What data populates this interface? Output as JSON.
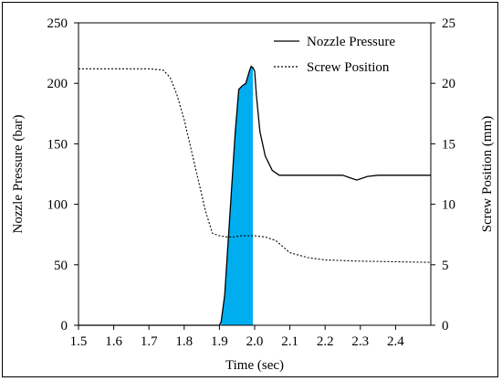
{
  "chart_data": {
    "type": "line",
    "x_axis": {
      "label": "Time (sec)",
      "range": [
        1.5,
        2.5
      ],
      "ticks": [
        "1.5",
        "1.6",
        "1.7",
        "1.8",
        "1.9",
        "2.0",
        "2.1",
        "2.2",
        "2.3",
        "2.4"
      ],
      "tick_values": [
        1.5,
        1.6,
        1.7,
        1.8,
        1.9,
        2.0,
        2.1,
        2.2,
        2.3,
        2.4
      ]
    },
    "y_left": {
      "label": "Nozzle Pressure (bar)",
      "range": [
        0,
        250
      ],
      "ticks": [
        "0",
        "50",
        "100",
        "150",
        "200",
        "250"
      ],
      "tick_values": [
        0,
        50,
        100,
        150,
        200,
        250
      ]
    },
    "y_right": {
      "label": "Screw Position (mm)",
      "range": [
        0,
        25
      ],
      "ticks": [
        "0",
        "5",
        "10",
        "15",
        "20",
        "25"
      ],
      "tick_values": [
        0,
        5,
        10,
        15,
        20,
        25
      ]
    },
    "legend": {
      "placement": "top-right",
      "entries": [
        "Nozzle Pressure",
        "Screw Position"
      ]
    },
    "grid": false,
    "shaded_region": {
      "x_start": 1.905,
      "x_end": 1.995,
      "color": "#00aeef",
      "series": "Nozzle Pressure"
    },
    "series": [
      {
        "name": "Nozzle Pressure",
        "axis": "left",
        "style": "solid",
        "x": [
          1.5,
          1.9,
          1.905,
          1.915,
          1.925,
          1.935,
          1.945,
          1.955,
          1.965,
          1.975,
          1.985,
          1.99,
          1.995,
          2.0,
          2.005,
          2.015,
          2.03,
          2.05,
          2.07,
          2.09,
          2.12,
          2.15,
          2.2,
          2.25,
          2.27,
          2.29,
          2.32,
          2.35,
          2.4,
          2.45,
          2.5
        ],
        "y": [
          0,
          0,
          3,
          25,
          70,
          115,
          160,
          195,
          198,
          200,
          210,
          214,
          213,
          210,
          190,
          160,
          140,
          128,
          124,
          124,
          124,
          124,
          124,
          124,
          122,
          120,
          123,
          124,
          124,
          124,
          124
        ]
      },
      {
        "name": "Screw Position",
        "axis": "right",
        "style": "dashed",
        "x": [
          1.5,
          1.6,
          1.7,
          1.74,
          1.76,
          1.78,
          1.8,
          1.82,
          1.84,
          1.86,
          1.88,
          1.9,
          1.92,
          1.94,
          1.96,
          1.98,
          2.0,
          2.03,
          2.06,
          2.08,
          2.1,
          2.15,
          2.2,
          2.3,
          2.4,
          2.5
        ],
        "y": [
          21.2,
          21.2,
          21.2,
          21.1,
          20.5,
          19.0,
          17.0,
          14.5,
          12.0,
          9.5,
          7.6,
          7.4,
          7.3,
          7.3,
          7.4,
          7.4,
          7.4,
          7.3,
          7.0,
          6.5,
          6.0,
          5.6,
          5.4,
          5.3,
          5.25,
          5.2
        ]
      }
    ]
  }
}
